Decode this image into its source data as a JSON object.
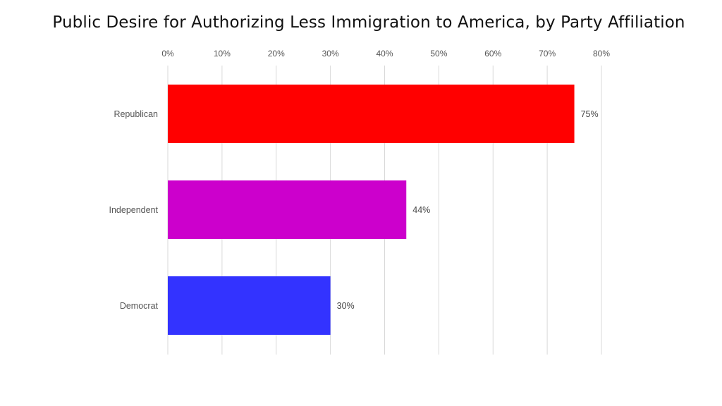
{
  "chart_data": {
    "type": "bar",
    "orientation": "horizontal",
    "title": "Public Desire for Authorizing Less Immigration to America, by Party Affiliation",
    "categories": [
      "Republican",
      "Independent",
      "Democrat"
    ],
    "values": [
      75,
      44,
      30
    ],
    "data_labels": [
      "75%",
      "44%",
      "30%"
    ],
    "bar_colors": [
      "#ff0000",
      "#cc00cc",
      "#3333ff"
    ],
    "x_ticks": [
      0,
      10,
      20,
      30,
      40,
      50,
      60,
      70,
      80
    ],
    "x_tick_labels": [
      "0%",
      "10%",
      "20%",
      "30%",
      "40%",
      "50%",
      "60%",
      "70%",
      "80%"
    ],
    "xlim": [
      0,
      80
    ],
    "xaxis_position": "top",
    "grid": true,
    "legend": "none"
  }
}
